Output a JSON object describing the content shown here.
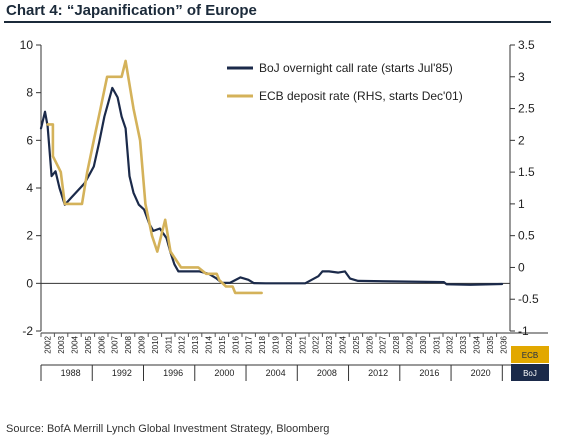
{
  "title": "Chart 4: “Japanification” of Europe",
  "source": "Source:  BofA Merrill Lynch Global Investment Strategy, Bloomberg",
  "chart_data": {
    "type": "line",
    "title": "Chart 4: “Japanification” of Europe",
    "left_axis": {
      "ylim": [
        -2,
        10
      ],
      "ticks": [
        "-2",
        "0",
        "2",
        "4",
        "6",
        "8",
        "10"
      ]
    },
    "right_axis": {
      "ylim": [
        -1,
        3.5
      ],
      "ticks": [
        "-1",
        "-0.5",
        "0",
        "0.5",
        "1",
        "1.5",
        "2",
        "2.5",
        "3",
        "3.5"
      ]
    },
    "x_top_ticks": [
      "2002",
      "2003",
      "2004",
      "2005",
      "2006",
      "2007",
      "2008",
      "2009",
      "2010",
      "2011",
      "2012",
      "2013",
      "2014",
      "2015",
      "2016",
      "2017",
      "2018",
      "2019",
      "2020",
      "2021",
      "2022",
      "2023",
      "2024",
      "2025",
      "2026",
      "2027",
      "2028",
      "2029",
      "2030",
      "2031",
      "2032",
      "2033",
      "2034",
      "2035",
      "2036"
    ],
    "x_bottom_ticks": [
      "1988",
      "1992",
      "1996",
      "2000",
      "2004",
      "2008",
      "2012",
      "2016",
      "2020"
    ],
    "axis_tags": {
      "ecb": "ECB",
      "boj": "BoJ"
    },
    "legend_position": "top-right",
    "grid": false,
    "series": [
      {
        "name": "BoJ overnight call rate (starts Jul'85)",
        "axis": "left",
        "color": "#1b2a4a",
        "x": [
          1985.5,
          1985.8,
          1986.0,
          1986.3,
          1986.6,
          1986.9,
          1987.3,
          1987.8,
          1988.3,
          1988.8,
          1989.2,
          1989.5,
          1989.9,
          1990.3,
          1990.6,
          1990.9,
          1991.3,
          1991.6,
          1991.9,
          1992.2,
          1992.5,
          1992.9,
          1993.3,
          1993.7,
          1994.0,
          1994.5,
          1995.0,
          1995.3,
          1995.6,
          1995.9,
          1996.3,
          1996.8,
          1997.5,
          1998.2,
          1998.8,
          1999.2,
          1999.8,
          2000.6,
          2001.2,
          2001.6,
          2002.5,
          2004.0,
          2005.5,
          2006.5,
          2006.8,
          2007.3,
          2008.0,
          2008.5,
          2008.9,
          2009.5,
          2012.0,
          2016.0,
          2016.2,
          2018.0,
          2020.4
        ],
        "y": [
          6.5,
          7.2,
          6.6,
          4.5,
          4.7,
          4.0,
          3.3,
          3.6,
          3.9,
          4.2,
          4.6,
          4.9,
          5.9,
          7.0,
          7.6,
          8.2,
          7.8,
          7.0,
          6.5,
          4.5,
          3.8,
          3.3,
          3.1,
          2.5,
          2.2,
          2.3,
          1.9,
          1.3,
          0.8,
          0.5,
          0.5,
          0.5,
          0.5,
          0.4,
          0.2,
          0.02,
          0.02,
          0.25,
          0.15,
          0.01,
          0.0,
          0.0,
          0.0,
          0.3,
          0.5,
          0.5,
          0.45,
          0.5,
          0.2,
          0.1,
          0.08,
          0.05,
          -0.04,
          -0.06,
          -0.03
        ]
      },
      {
        "name": "ECB deposit rate (RHS, starts Dec'01)",
        "axis": "right",
        "color": "#d4b25a",
        "x": [
          1986.0,
          1986.4,
          1986.4,
          1987.0,
          1987.3,
          1988.2,
          1988.6,
          1989.0,
          1989.5,
          1990.0,
          1990.5,
          1990.9,
          1991.6,
          1991.9,
          1992.5,
          1993.0,
          1993.4,
          1993.9,
          1994.3,
          1994.6,
          1994.9,
          1995.3,
          1996.1,
          1997.4,
          1998.0,
          1998.8,
          1999.0,
          1999.5,
          2000.0,
          2000.2,
          2000.8,
          2002.0,
          2002.2
        ],
        "y": [
          2.25,
          2.25,
          1.75,
          1.5,
          1.0,
          1.0,
          1.0,
          1.5,
          2.0,
          2.5,
          3.0,
          3.0,
          3.0,
          3.25,
          2.5,
          2.0,
          1.0,
          0.5,
          0.25,
          0.5,
          0.75,
          0.25,
          0.0,
          0.0,
          -0.1,
          -0.1,
          -0.2,
          -0.3,
          -0.3,
          -0.4,
          -0.4,
          -0.4,
          -0.4
        ]
      }
    ]
  }
}
